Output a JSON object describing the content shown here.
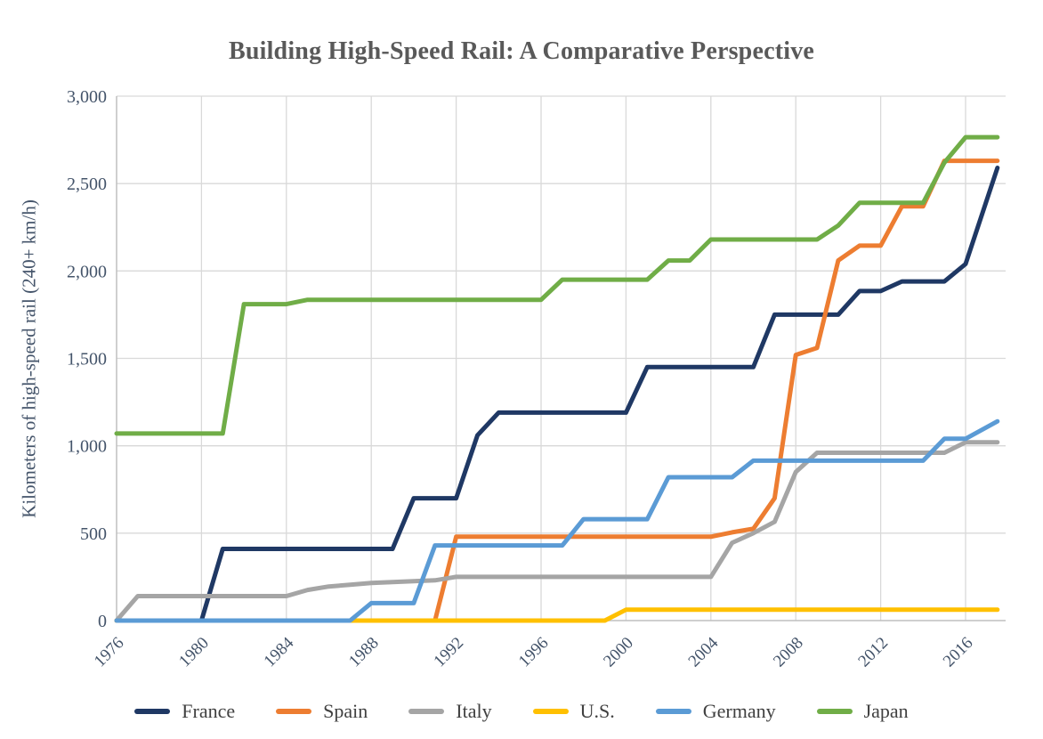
{
  "chart_data": {
    "type": "line",
    "title": "Building High-Speed Rail: A Comparative Perspective",
    "y_axis": {
      "title": "Kilometers of high-speed rail (240+ km/h)",
      "min": 0,
      "max": 3000,
      "step": 500,
      "tick_labels": [
        "0",
        "500",
        "1,000",
        "1,500",
        "2,000",
        "2,500",
        "3,000"
      ]
    },
    "x_axis": {
      "min": 1976,
      "max": 2017.9,
      "tick_labels": [
        "1976",
        "1980",
        "1984",
        "1988",
        "1992",
        "1996",
        "2000",
        "2004",
        "2008",
        "2012",
        "2016"
      ],
      "tick_years": [
        1976,
        1980,
        1984,
        1988,
        1992,
        1996,
        2000,
        2004,
        2008,
        2012,
        2016
      ]
    },
    "grid": true,
    "legend_position": "bottom",
    "colors": {
      "grid": "#D9D9D9",
      "axis": "#BFBFBF",
      "tick_text": "#44546A",
      "title_text": "#595959",
      "legend_text": "#404040"
    },
    "series": [
      {
        "name": "France",
        "color": "#1F3864",
        "points": [
          [
            1976,
            0
          ],
          [
            1980,
            0
          ],
          [
            1981,
            410
          ],
          [
            1989,
            410
          ],
          [
            1990,
            700
          ],
          [
            1992,
            700
          ],
          [
            1993,
            1060
          ],
          [
            1994,
            1190
          ],
          [
            2000,
            1190
          ],
          [
            2001,
            1450
          ],
          [
            2006,
            1450
          ],
          [
            2007,
            1750
          ],
          [
            2010,
            1750
          ],
          [
            2011,
            1885
          ],
          [
            2012,
            1885
          ],
          [
            2013,
            1940
          ],
          [
            2015,
            1940
          ],
          [
            2016,
            2040
          ],
          [
            2017.5,
            2590
          ]
        ]
      },
      {
        "name": "Spain",
        "color": "#ED7D31",
        "points": [
          [
            1976,
            0
          ],
          [
            1991,
            0
          ],
          [
            1992,
            480
          ],
          [
            2004,
            480
          ],
          [
            2005,
            505
          ],
          [
            2006,
            525
          ],
          [
            2007,
            700
          ],
          [
            2008,
            1520
          ],
          [
            2009,
            1560
          ],
          [
            2010,
            2060
          ],
          [
            2011,
            2145
          ],
          [
            2012,
            2145
          ],
          [
            2013,
            2370
          ],
          [
            2014,
            2370
          ],
          [
            2015,
            2630
          ],
          [
            2017.5,
            2630
          ]
        ]
      },
      {
        "name": "Italy",
        "color": "#A5A5A5",
        "points": [
          [
            1976,
            0
          ],
          [
            1977,
            140
          ],
          [
            1984,
            140
          ],
          [
            1985,
            175
          ],
          [
            1986,
            195
          ],
          [
            1987,
            205
          ],
          [
            1988,
            215
          ],
          [
            1991,
            230
          ],
          [
            1992,
            250
          ],
          [
            2004,
            250
          ],
          [
            2005,
            445
          ],
          [
            2006,
            500
          ],
          [
            2007,
            565
          ],
          [
            2008,
            850
          ],
          [
            2009,
            960
          ],
          [
            2015,
            960
          ],
          [
            2016,
            1020
          ],
          [
            2017.5,
            1020
          ]
        ]
      },
      {
        "name": "U.S.",
        "color": "#FFC000",
        "points": [
          [
            1976,
            0
          ],
          [
            1999,
            0
          ],
          [
            2000,
            62
          ],
          [
            2017.5,
            62
          ]
        ]
      },
      {
        "name": "Germany",
        "color": "#5B9BD5",
        "points": [
          [
            1976,
            0
          ],
          [
            1987,
            0
          ],
          [
            1988,
            100
          ],
          [
            1990,
            100
          ],
          [
            1991,
            430
          ],
          [
            1997,
            430
          ],
          [
            1998,
            580
          ],
          [
            2001,
            580
          ],
          [
            2002,
            820
          ],
          [
            2005,
            820
          ],
          [
            2006,
            915
          ],
          [
            2014,
            915
          ],
          [
            2015,
            1040
          ],
          [
            2016,
            1040
          ],
          [
            2017.5,
            1140
          ]
        ]
      },
      {
        "name": "Japan",
        "color": "#70AD47",
        "points": [
          [
            1976,
            1070
          ],
          [
            1981,
            1070
          ],
          [
            1982,
            1810
          ],
          [
            1984,
            1810
          ],
          [
            1985,
            1835
          ],
          [
            1996,
            1835
          ],
          [
            1997,
            1950
          ],
          [
            2001,
            1950
          ],
          [
            2002,
            2060
          ],
          [
            2003,
            2060
          ],
          [
            2004,
            2180
          ],
          [
            2009,
            2180
          ],
          [
            2010,
            2260
          ],
          [
            2011,
            2390
          ],
          [
            2014,
            2390
          ],
          [
            2015,
            2620
          ],
          [
            2016,
            2765
          ],
          [
            2017.5,
            2765
          ]
        ]
      }
    ]
  }
}
